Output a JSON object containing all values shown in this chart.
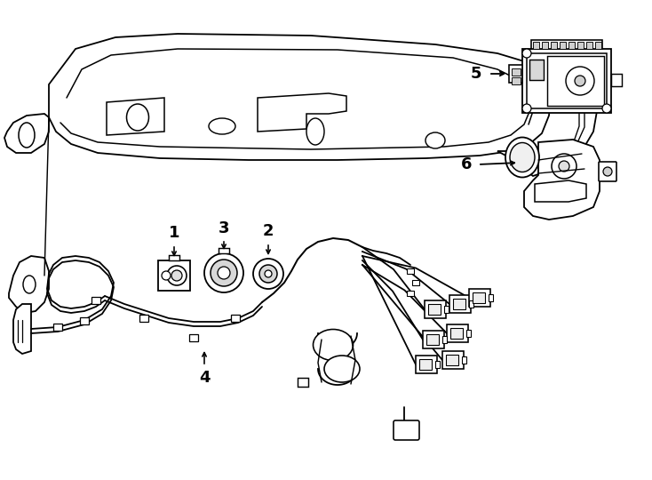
{
  "bg_color": "#ffffff",
  "line_color": "#000000",
  "lw": 1.3,
  "fig_width": 7.34,
  "fig_height": 5.4,
  "dpi": 100
}
